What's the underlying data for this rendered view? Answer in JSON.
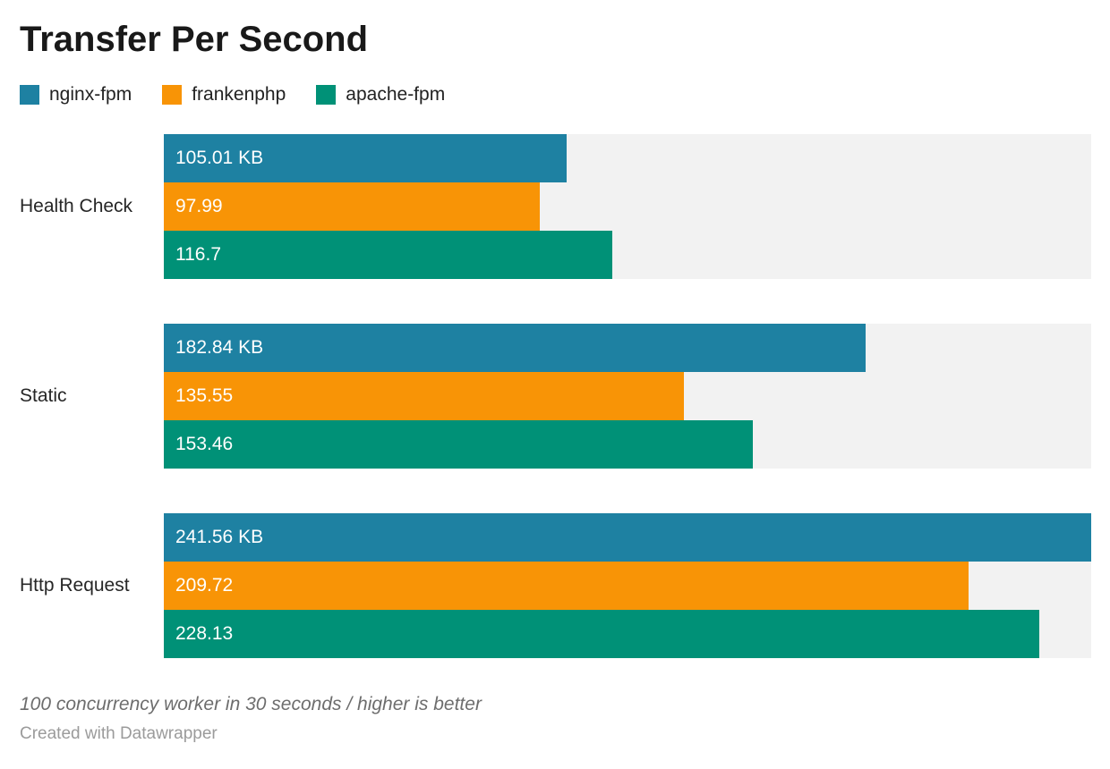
{
  "chart_data": {
    "type": "bar",
    "orientation": "horizontal",
    "title": "Transfer Per Second",
    "categories": [
      "Health Check",
      "Static",
      "Http Request"
    ],
    "series": [
      {
        "name": "nginx-fpm",
        "color": "#1e81a2",
        "values": [
          105.01,
          182.84,
          241.56
        ],
        "value_labels": [
          "105.01 KB",
          "182.84 KB",
          "241.56 KB"
        ]
      },
      {
        "name": "frankenphp",
        "color": "#f89406",
        "values": [
          97.99,
          135.55,
          209.72
        ],
        "value_labels": [
          "97.99",
          "135.55",
          "209.72"
        ]
      },
      {
        "name": "apache-fpm",
        "color": "#009177",
        "values": [
          116.7,
          153.46,
          228.13
        ],
        "value_labels": [
          "116.7",
          "153.46",
          "228.13"
        ]
      }
    ],
    "unit": "KB",
    "xlim": [
      0,
      241.56
    ],
    "grid": false,
    "legend_position": "top",
    "track_color": "#f2f2f2",
    "value_label_color": "#ffffff",
    "note": "100 concurrency worker in 30 seconds / higher is better"
  },
  "footer": {
    "attribution": "Created with Datawrapper"
  }
}
